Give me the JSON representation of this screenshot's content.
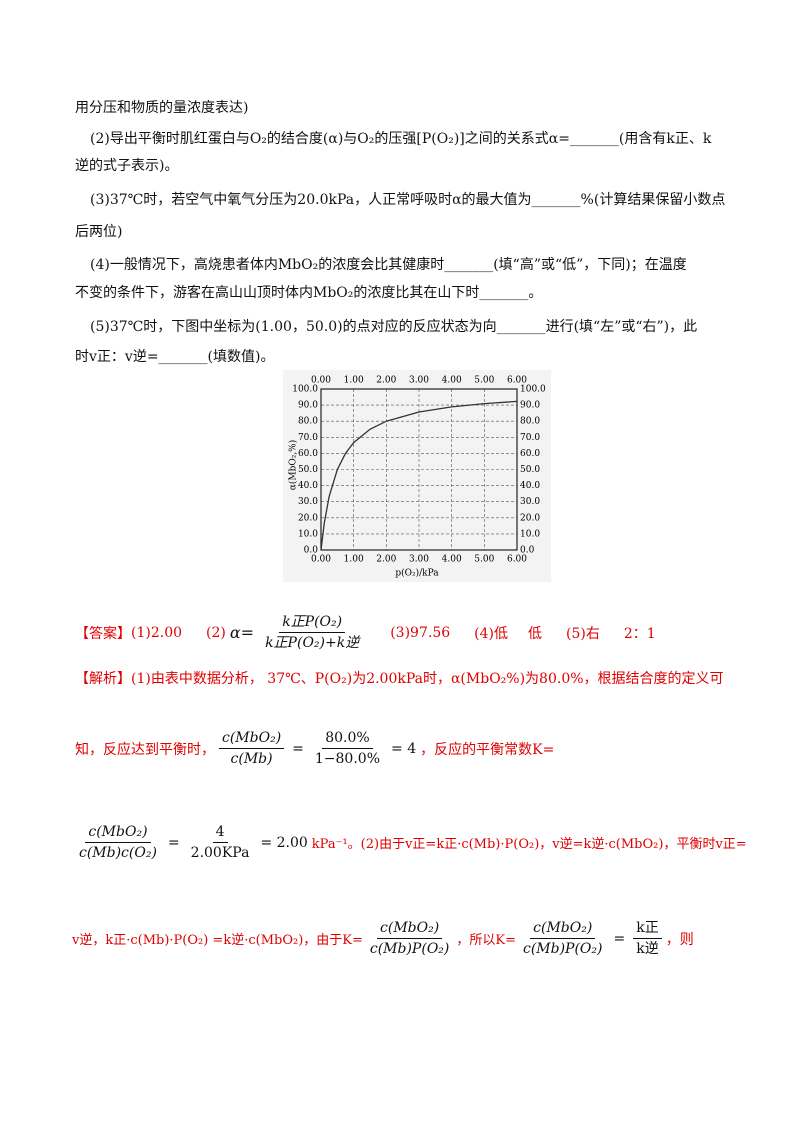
{
  "question": {
    "lines": [
      "用分压和物质的量浓度表达)",
      "(2)导出平衡时肌红蛋白与O₂的结合度(α)与O₂的压强[P(O₂)]之间的关系式α=_______(用含有k正、k",
      "逆的式子表示)。",
      "(3)37℃时，若空气中氧气分压为20.0kPa，人正常呼吸时α的最大值为_______%(计算结果保留小数点",
      "后两位)",
      "(4)一般情况下，高烧患者体内MbO₂的浓度会比其健康时_______(填“高”或“低”，下同)；在温度",
      "不变的条件下，游客在高山山顶时体内MbO₂的浓度比其在山下时_______。",
      "(5)37℃时，下图中坐标为(1.00，50.0)的点对应的反应状态为向_______进行(填“左”或“右”)，此",
      "时v正：v逆=_______(填数值)。"
    ]
  },
  "chart_data": {
    "type": "line",
    "x_label": "p(O₂)/kPa",
    "y_label": "α(MbO₂,%)",
    "x": [
      0,
      0.1,
      0.25,
      0.5,
      0.75,
      1,
      1.5,
      2,
      3,
      4,
      5,
      6
    ],
    "series": [
      {
        "color": "#333333",
        "values": [
          0,
          16.7,
          33.3,
          50,
          60,
          66.7,
          75,
          80,
          85.7,
          88.9,
          90.9,
          92.3
        ]
      }
    ],
    "xlim": [
      0,
      6
    ],
    "ylim": [
      0,
      100
    ],
    "grid": true,
    "xticks": [
      {
        "value": 0,
        "label": "0.00"
      },
      {
        "value": 1,
        "label": "1.00"
      },
      {
        "value": 2,
        "label": "2.00"
      },
      {
        "value": 3,
        "label": "3.00"
      },
      {
        "value": 4,
        "label": "4.00"
      },
      {
        "value": 5,
        "label": "5.00"
      },
      {
        "value": 6,
        "label": "6.00"
      }
    ],
    "yticks": [
      {
        "value": 0,
        "label": "0.0"
      },
      {
        "value": 10,
        "label": "10.0"
      },
      {
        "value": 20,
        "label": "20.0"
      },
      {
        "value": 30,
        "label": "30.0"
      },
      {
        "value": 40,
        "label": "40.0"
      },
      {
        "value": 50,
        "label": "50.0"
      },
      {
        "value": 60,
        "label": "60.0"
      },
      {
        "value": 70,
        "label": "70.0"
      },
      {
        "value": 80,
        "label": "80.0"
      },
      {
        "value": 90,
        "label": "90.0"
      },
      {
        "value": 100,
        "label": "100.0"
      }
    ]
  },
  "answer": {
    "label": "【答案】",
    "p1": "(1)2.00",
    "p2": "(2)",
    "formula": {
      "lhs": "α=",
      "num": "k正P(O₂)",
      "den": "k正P(O₂)+k逆"
    },
    "p3": "(3)97.56",
    "p4": "(4)低",
    "p4b": "低",
    "p5": "(5)右",
    "p5b": "2：1"
  },
  "analysis": {
    "line1": "【解析】(1)由表中数据分析， 37℃、P(O₂)为2.00kPa时，α(MbO₂%)为80.0%，根据结合度的定义可",
    "line2": {
      "pre": "知，反应达到平衡时，",
      "f1": {
        "num": "c(MbO₂)",
        "den": "c(Mb)"
      },
      "eq1": "=",
      "f2": {
        "num": "80.0%",
        "den": "1−80.0%"
      },
      "eq2": "= 4",
      "post": "，反应的平衡常数K="
    },
    "line3": {
      "f1": {
        "num": "c(MbO₂)",
        "den": "c(Mb)c(O₂)"
      },
      "eq1": "=",
      "f2": {
        "num": "4",
        "den": "2.00KPa"
      },
      "eq2": "= 2.00",
      "post": "kPa⁻¹。(2)由于v正=k正·c(Mb)·P(O₂)，v逆=k逆·c(MbO₂)，平衡时v正="
    },
    "line4": {
      "pre": "v逆，k正·c(Mb)·P(O₂) =k逆·c(MbO₂)，由于K=",
      "f1": {
        "num": "c(MbO₂)",
        "den": "c(Mb)P(O₂)"
      },
      "mid": "，所以K=",
      "f2": {
        "num": "c(MbO₂)",
        "den": "c(Mb)P(O₂)"
      },
      "eq": "=",
      "f3": {
        "num": "k正",
        "den": "k逆"
      },
      "post": "，则"
    }
  }
}
